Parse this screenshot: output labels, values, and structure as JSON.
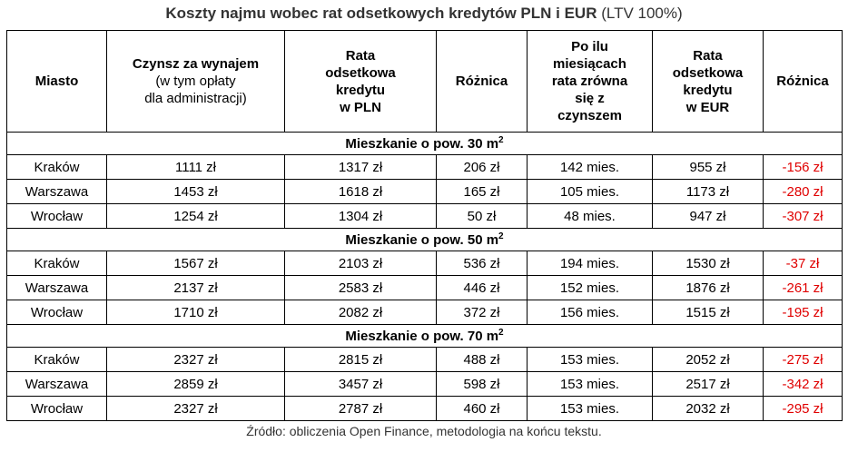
{
  "title": {
    "main": "Koszty najmu wobec rat odsetkowych kredytów PLN i EUR",
    "suffix": "(LTV 100%)"
  },
  "table": {
    "header": [
      {
        "lines": [
          "Miasto"
        ]
      },
      {
        "lines": [
          "Czynsz za wynajem"
        ],
        "note": [
          "(w tym opłaty",
          "dla administracji)"
        ]
      },
      {
        "lines": [
          "Rata",
          "odsetkowa",
          "kredytu",
          "w PLN"
        ]
      },
      {
        "lines": [
          "Różnica"
        ]
      },
      {
        "lines": [
          "Po ilu",
          "miesiącach",
          "rata zrówna",
          "się z",
          "czynszem"
        ]
      },
      {
        "lines": [
          "Rata",
          "odsetkowa",
          "kredytu",
          "w EUR"
        ]
      },
      {
        "lines": [
          "Różnica"
        ]
      }
    ],
    "sections": [
      {
        "label": "Mieszkanie o pow. 30 m",
        "sup": "2",
        "rows": [
          [
            "Kraków",
            "1111 zł",
            "1317 zł",
            "206 zł",
            "142 mies.",
            "955 zł",
            "-156 zł"
          ],
          [
            "Warszawa",
            "1453 zł",
            "1618 zł",
            "165 zł",
            "105 mies.",
            "1173 zł",
            "-280 zł"
          ],
          [
            "Wrocław",
            "1254 zł",
            "1304 zł",
            "50 zł",
            "48 mies.",
            "947 zł",
            "-307 zł"
          ]
        ]
      },
      {
        "label": "Mieszkanie o pow. 50 m",
        "sup": "2",
        "rows": [
          [
            "Kraków",
            "1567 zł",
            "2103 zł",
            "536 zł",
            "194 mies.",
            "1530 zł",
            "-37 zł"
          ],
          [
            "Warszawa",
            "2137 zł",
            "2583 zł",
            "446 zł",
            "152 mies.",
            "1876 zł",
            "-261 zł"
          ],
          [
            "Wrocław",
            "1710 zł",
            "2082 zł",
            "372 zł",
            "156 mies.",
            "1515 zł",
            "-195 zł"
          ]
        ]
      },
      {
        "label": "Mieszkanie o pow. 70 m",
        "sup": "2",
        "rows": [
          [
            "Kraków",
            "2327 zł",
            "2815 zł",
            "488 zł",
            "153 mies.",
            "2052 zł",
            "-275 zł"
          ],
          [
            "Warszawa",
            "2859 zł",
            "3457 zł",
            "598 zł",
            "153 mies.",
            "2517 zł",
            "-342 zł"
          ],
          [
            "Wrocław",
            "2327 zł",
            "2787 zł",
            "460 zł",
            "153 mies.",
            "2032 zł",
            "-295 zł"
          ]
        ]
      }
    ]
  },
  "source": "Źródło: obliczenia Open Finance, metodologia na końcu tekstu."
}
